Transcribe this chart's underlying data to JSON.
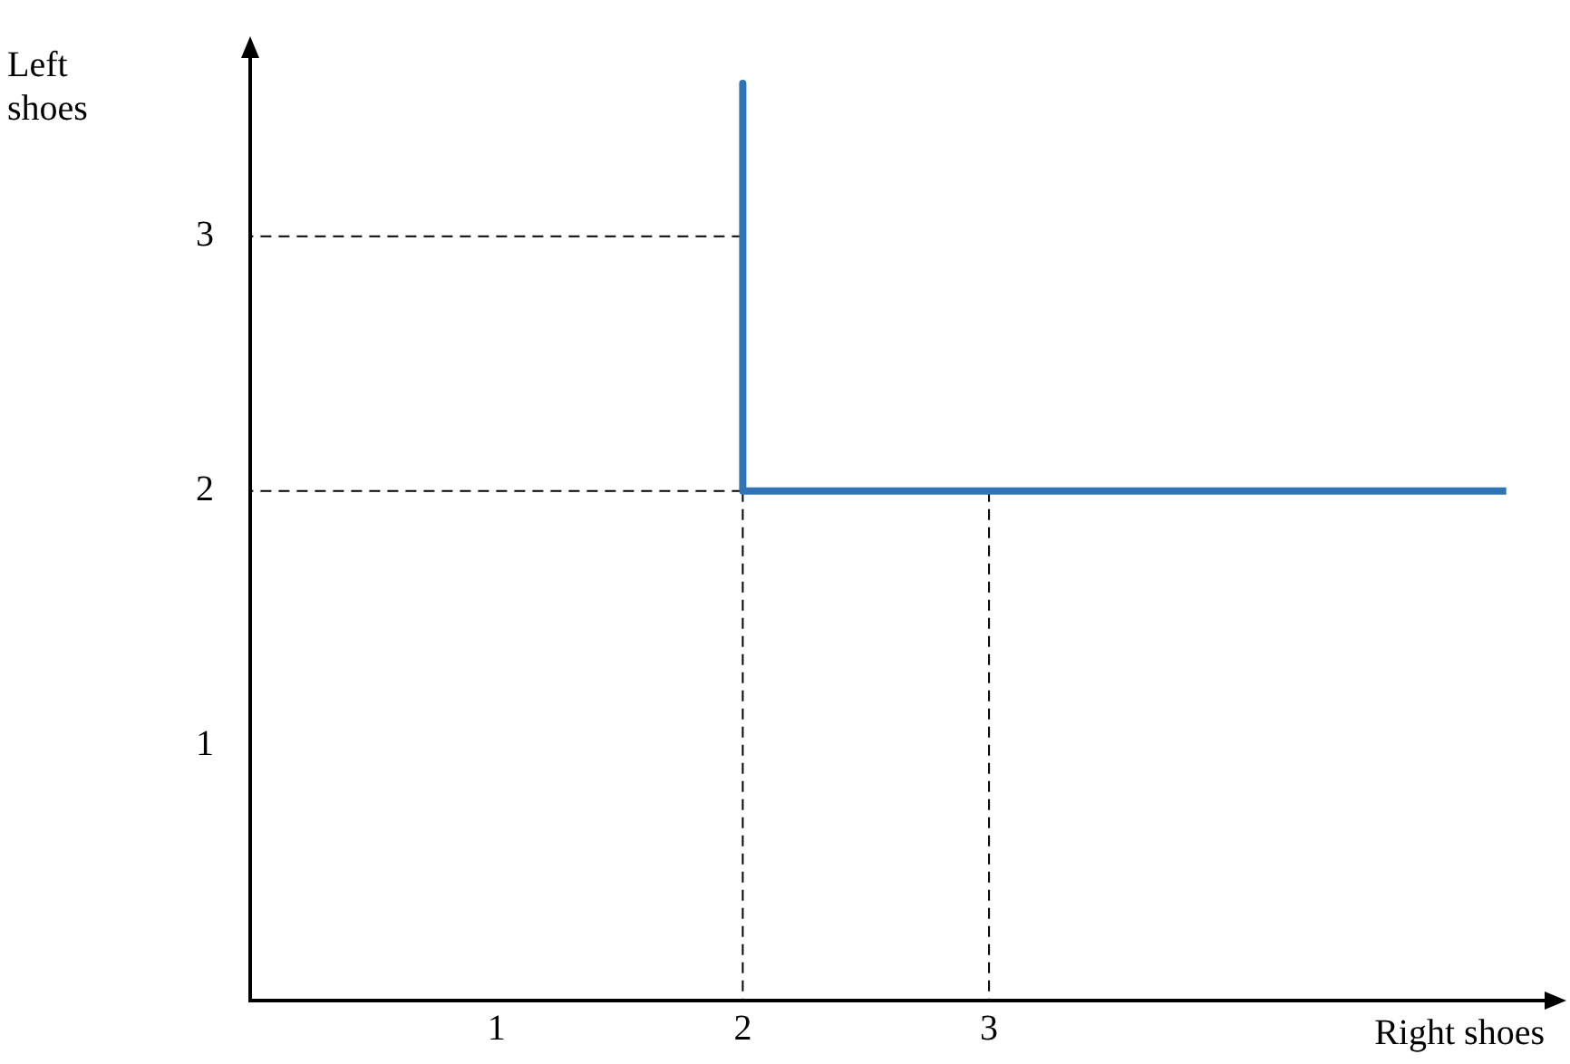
{
  "chart_data": {
    "type": "line",
    "xlabel": "Right shoes",
    "ylabel": "Left shoes",
    "xlim": [
      0,
      5.3
    ],
    "ylim": [
      0,
      3.7
    ],
    "xticks": [
      1,
      2,
      3
    ],
    "yticks": [
      1,
      2,
      3
    ],
    "grid": false,
    "legend": false,
    "marker": "none",
    "series": [
      {
        "color": "#2e75b6",
        "x": [
          2,
          2,
          5.1
        ],
        "values": [
          3.6,
          2,
          2
        ],
        "line_style": "solid"
      },
      {
        "color": "#000000",
        "x": [
          2,
          0
        ],
        "values": [
          3,
          3
        ],
        "line_style": "dashed"
      },
      {
        "color": "#000000",
        "x": [
          2,
          0
        ],
        "values": [
          2,
          2
        ],
        "line_style": "dashed"
      },
      {
        "color": "#000000",
        "x": [
          2,
          2
        ],
        "values": [
          2,
          0
        ],
        "line_style": "dashed"
      },
      {
        "color": "#000000",
        "x": [
          3,
          3
        ],
        "values": [
          2,
          0
        ],
        "line_style": "dashed"
      }
    ]
  }
}
